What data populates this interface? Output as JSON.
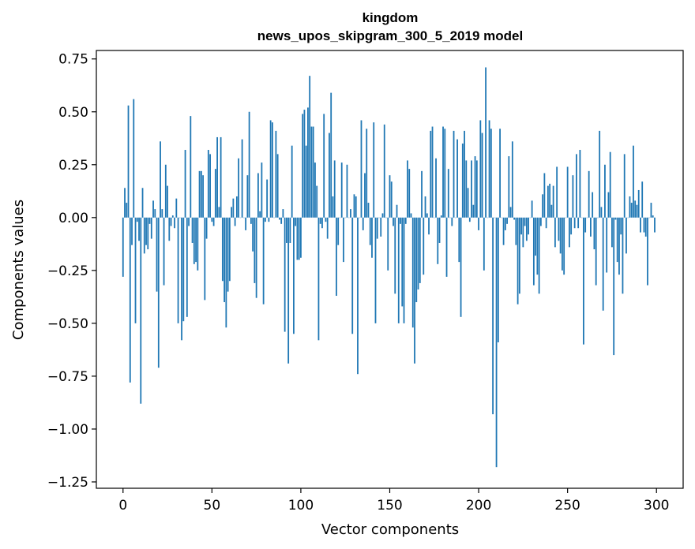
{
  "chart_data": {
    "type": "bar",
    "title": "kingdom",
    "subtitle": "news_upos_skipgram_300_5_2019 model",
    "xlabel": "Vector components",
    "ylabel": "Components values",
    "xlim": [
      -15,
      315
    ],
    "ylim": [
      -1.28,
      0.79
    ],
    "xticks": [
      0,
      50,
      100,
      150,
      200,
      250,
      300
    ],
    "xtick_labels": [
      "0",
      "50",
      "100",
      "150",
      "200",
      "250",
      "300"
    ],
    "yticks": [
      0.75,
      0.5,
      0.25,
      0.0,
      -0.25,
      -0.5,
      -0.75,
      -1.0,
      -1.25
    ],
    "ytick_labels": [
      "0.75",
      "0.50",
      "0.25",
      "0.00",
      "−0.25",
      "−0.50",
      "−0.75",
      "−1.00",
      "−1.25"
    ],
    "bar_color": "#1f77b4",
    "x": [
      0,
      1,
      2,
      3,
      4,
      5,
      6,
      7,
      8,
      9,
      10,
      11,
      12,
      13,
      14,
      15,
      16,
      17,
      18,
      19,
      20,
      21,
      22,
      23,
      24,
      25,
      26,
      27,
      28,
      29,
      30,
      31,
      32,
      33,
      34,
      35,
      36,
      37,
      38,
      39,
      40,
      41,
      42,
      43,
      44,
      45,
      46,
      47,
      48,
      49,
      50,
      51,
      52,
      53,
      54,
      55,
      56,
      57,
      58,
      59,
      60,
      61,
      62,
      63,
      64,
      65,
      66,
      67,
      68,
      69,
      70,
      71,
      72,
      73,
      74,
      75,
      76,
      77,
      78,
      79,
      80,
      81,
      82,
      83,
      84,
      85,
      86,
      87,
      88,
      89,
      90,
      91,
      92,
      93,
      94,
      95,
      96,
      97,
      98,
      99,
      100,
      101,
      102,
      103,
      104,
      105,
      106,
      107,
      108,
      109,
      110,
      111,
      112,
      113,
      114,
      115,
      116,
      117,
      118,
      119,
      120,
      121,
      122,
      123,
      124,
      125,
      126,
      127,
      128,
      129,
      130,
      131,
      132,
      133,
      134,
      135,
      136,
      137,
      138,
      139,
      140,
      141,
      142,
      143,
      144,
      145,
      146,
      147,
      148,
      149,
      150,
      151,
      152,
      153,
      154,
      155,
      156,
      157,
      158,
      159,
      160,
      161,
      162,
      163,
      164,
      165,
      166,
      167,
      168,
      169,
      170,
      171,
      172,
      173,
      174,
      175,
      176,
      177,
      178,
      179,
      180,
      181,
      182,
      183,
      184,
      185,
      186,
      187,
      188,
      189,
      190,
      191,
      192,
      193,
      194,
      195,
      196,
      197,
      198,
      199,
      200,
      201,
      202,
      203,
      204,
      205,
      206,
      207,
      208,
      209,
      210,
      211,
      212,
      213,
      214,
      215,
      216,
      217,
      218,
      219,
      220,
      221,
      222,
      223,
      224,
      225,
      226,
      227,
      228,
      229,
      230,
      231,
      232,
      233,
      234,
      235,
      236,
      237,
      238,
      239,
      240,
      241,
      242,
      243,
      244,
      245,
      246,
      247,
      248,
      249,
      250,
      251,
      252,
      253,
      254,
      255,
      256,
      257,
      258,
      259,
      260,
      261,
      262,
      263,
      264,
      265,
      266,
      267,
      268,
      269,
      270,
      271,
      272,
      273,
      274,
      275,
      276,
      277,
      278,
      279,
      280,
      281,
      282,
      283,
      284,
      285,
      286,
      287,
      288,
      289,
      290,
      291,
      292,
      293,
      294,
      295,
      296,
      297,
      298,
      299
    ],
    "values": [
      -0.28,
      0.14,
      0.07,
      0.53,
      -0.78,
      -0.13,
      0.56,
      -0.5,
      -0.02,
      -0.11,
      -0.88,
      0.14,
      -0.17,
      -0.13,
      -0.15,
      -0.03,
      -0.1,
      0.08,
      0.04,
      -0.35,
      -0.71,
      0.36,
      0.04,
      -0.32,
      0.25,
      0.15,
      -0.11,
      -0.04,
      0.01,
      -0.05,
      0.09,
      -0.5,
      0.0,
      -0.58,
      -0.49,
      0.32,
      -0.47,
      -0.04,
      0.48,
      -0.12,
      -0.22,
      -0.21,
      -0.25,
      0.22,
      0.22,
      0.2,
      -0.39,
      -0.1,
      0.32,
      0.3,
      -0.02,
      -0.04,
      0.23,
      0.38,
      0.05,
      0.38,
      -0.3,
      -0.4,
      -0.52,
      -0.35,
      -0.3,
      0.05,
      0.09,
      -0.04,
      0.1,
      0.28,
      0.0,
      0.37,
      0.0,
      -0.06,
      0.2,
      0.5,
      -0.03,
      -0.16,
      -0.31,
      -0.38,
      0.21,
      0.03,
      0.26,
      -0.41,
      -0.02,
      0.18,
      -0.02,
      0.46,
      0.45,
      0.0,
      0.41,
      0.3,
      -0.01,
      -0.03,
      0.04,
      -0.54,
      -0.12,
      -0.69,
      -0.12,
      0.34,
      -0.55,
      -0.04,
      -0.2,
      -0.2,
      -0.19,
      0.49,
      0.51,
      0.34,
      0.52,
      0.67,
      0.43,
      0.43,
      0.26,
      0.15,
      -0.58,
      -0.03,
      -0.05,
      0.49,
      -0.02,
      -0.1,
      0.4,
      0.59,
      0.1,
      0.27,
      -0.37,
      -0.13,
      0.0,
      0.26,
      -0.21,
      0.0,
      0.25,
      0.0,
      0.04,
      -0.55,
      0.11,
      0.1,
      -0.74,
      0.0,
      0.46,
      -0.06,
      0.21,
      0.42,
      0.07,
      -0.13,
      -0.19,
      0.45,
      -0.5,
      -0.1,
      0.0,
      -0.09,
      0.02,
      0.44,
      0.0,
      -0.25,
      0.2,
      0.17,
      -0.04,
      -0.36,
      0.06,
      -0.5,
      -0.03,
      -0.42,
      -0.5,
      -0.03,
      0.27,
      0.23,
      0.02,
      -0.52,
      -0.69,
      -0.4,
      -0.34,
      -0.31,
      0.22,
      -0.27,
      0.1,
      0.02,
      -0.08,
      0.41,
      0.43,
      0.0,
      0.28,
      -0.22,
      -0.12,
      0.01,
      0.43,
      0.42,
      -0.28,
      0.23,
      0.0,
      -0.04,
      0.41,
      0.0,
      0.37,
      -0.21,
      -0.47,
      0.35,
      0.41,
      0.27,
      0.14,
      -0.02,
      0.27,
      0.06,
      0.29,
      0.27,
      -0.06,
      0.46,
      0.4,
      -0.25,
      0.71,
      0.0,
      0.46,
      0.42,
      -0.93,
      0.0,
      -1.18,
      -0.59,
      0.42,
      0.0,
      -0.13,
      -0.06,
      -0.03,
      0.29,
      0.05,
      0.36,
      -0.01,
      -0.13,
      -0.41,
      -0.36,
      -0.08,
      -0.14,
      -0.04,
      -0.11,
      -0.08,
      0.0,
      0.08,
      -0.32,
      -0.18,
      -0.27,
      -0.36,
      -0.04,
      0.11,
      0.21,
      -0.05,
      0.15,
      0.16,
      0.06,
      0.15,
      -0.14,
      0.24,
      -0.11,
      -0.17,
      -0.25,
      -0.27,
      0.0,
      0.24,
      -0.14,
      -0.08,
      0.2,
      -0.05,
      0.3,
      -0.05,
      0.32,
      0.0,
      -0.6,
      -0.07,
      0.0,
      0.22,
      -0.09,
      0.12,
      -0.15,
      -0.32,
      0.0,
      0.41,
      0.05,
      -0.44,
      0.25,
      -0.26,
      0.12,
      0.31,
      -0.14,
      -0.65,
      -0.01,
      -0.21,
      -0.27,
      -0.08,
      -0.36,
      0.3,
      -0.17,
      0.0,
      0.1,
      0.07,
      0.34,
      0.08,
      0.06,
      0.13,
      -0.07,
      0.17,
      -0.07,
      -0.09,
      -0.32,
      0.0,
      0.07,
      0.01,
      -0.07
    ]
  }
}
